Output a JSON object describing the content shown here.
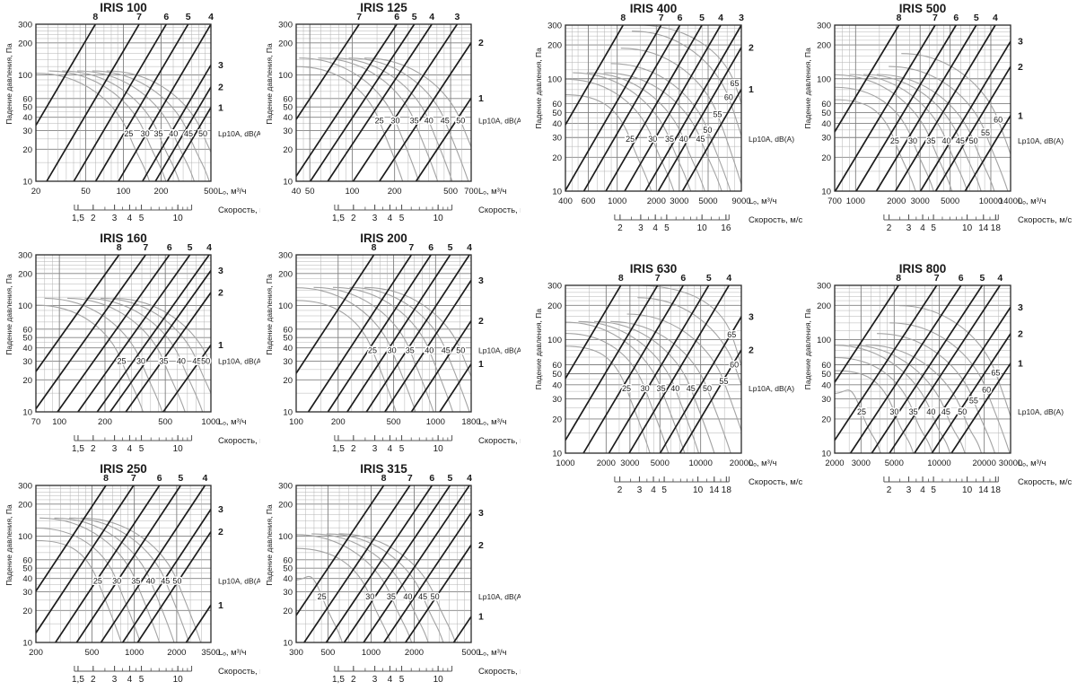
{
  "page": {
    "background": "#ffffff"
  },
  "axis_labels": {
    "pressure_axis": "Падение давления, Па",
    "flow_axis": "Lₒ, м³/ч",
    "velocity_axis": "Скорость, м/с",
    "noise_axis": "Lp10A, dB(A)"
  },
  "colors": {
    "damper_line": "#1c1c1c",
    "noise_line": "#a3a3a3",
    "noise_text": "#9a9a9a",
    "grid_minor": "#b3b3b3",
    "grid_major": "#808080",
    "border": "#2a2a2a",
    "text": "#1a1a1a"
  },
  "pressure_ticks": [
    300,
    200,
    100,
    60,
    50,
    40,
    30,
    20,
    10
  ],
  "pressure_range": [
    10,
    300
  ],
  "velocity_scales": {
    "small": {
      "labels": [
        "1,5",
        "2",
        "3",
        "4",
        "5",
        "10"
      ],
      "values": [
        1.5,
        2,
        3,
        4,
        5,
        10
      ],
      "v1": 1.4,
      "v2": 13,
      "f1": 0.22,
      "f2": 0.89,
      "minors": [
        1.5,
        2,
        2.5,
        3,
        3.5,
        4,
        4.5,
        5,
        6,
        7,
        8,
        9,
        10,
        11,
        12
      ]
    },
    "mid": {
      "labels": [
        "2",
        "3",
        "4",
        "5",
        "10",
        "16"
      ],
      "values": [
        2,
        3,
        4,
        5,
        10,
        16
      ],
      "v1": 1.8,
      "v2": 17,
      "f1": 0.28,
      "f2": 0.93,
      "minors": [
        2,
        2.5,
        3,
        3.5,
        4,
        4.5,
        5,
        6,
        7,
        8,
        9,
        10,
        12,
        14,
        16
      ]
    },
    "large": {
      "labels": [
        "2",
        "3",
        "4",
        "5",
        "10",
        "14",
        "18"
      ],
      "values": [
        2,
        3,
        4,
        5,
        10,
        14,
        18
      ],
      "v1": 1.8,
      "v2": 19,
      "f1": 0.28,
      "f2": 0.93,
      "minors": [
        2,
        2.5,
        3,
        3.5,
        4,
        4.5,
        5,
        6,
        7,
        8,
        9,
        10,
        12,
        14,
        16,
        18
      ]
    }
  },
  "chart_data": [
    {
      "type": "line",
      "title": "IRIS 100",
      "x_min": 20,
      "x_max": 500,
      "x_ticks": [
        20,
        50,
        100,
        200,
        500
      ],
      "damper_top": [
        [
          "8",
          0.34
        ],
        [
          "7",
          0.59
        ],
        [
          "6",
          0.745
        ],
        [
          "5",
          0.87
        ],
        [
          "4",
          1.0
        ]
      ],
      "damper_right": [
        [
          "3",
          0.26
        ],
        [
          "2",
          0.4
        ],
        [
          "1",
          0.53
        ]
      ],
      "noise_row_pa": 28,
      "noise_labels": [
        [
          "25",
          0.53
        ],
        [
          "30",
          0.624
        ],
        [
          "35",
          0.7
        ],
        [
          "40",
          0.786
        ],
        [
          "45",
          0.872
        ],
        [
          "50",
          0.954
        ]
      ],
      "velocity_scale": "small"
    },
    {
      "type": "line",
      "title": "IRIS 125",
      "x_min": 40,
      "x_max": 700,
      "x_ticks": [
        40,
        50,
        100,
        200,
        500,
        700
      ],
      "damper_top": [
        [
          "7",
          0.36
        ],
        [
          "6",
          0.575
        ],
        [
          "5",
          0.675
        ],
        [
          "4",
          0.775
        ],
        [
          "3",
          0.92
        ]
      ],
      "damper_right": [
        [
          "2",
          0.118
        ],
        [
          "1",
          0.47
        ]
      ],
      "noise_row_pa": 37,
      "noise_labels": [
        [
          "25",
          0.475
        ],
        [
          "30",
          0.567
        ],
        [
          "35",
          0.675
        ],
        [
          "40",
          0.758
        ],
        [
          "45",
          0.85
        ],
        [
          "50",
          0.94
        ]
      ],
      "velocity_scale": "small"
    },
    {
      "type": "line",
      "title": "IRIS 400",
      "x_min": 400,
      "x_max": 9000,
      "x_ticks": [
        400,
        600,
        1000,
        2000,
        3000,
        5000,
        9000
      ],
      "damper_top": [
        [
          "8",
          0.328
        ],
        [
          "7",
          0.544
        ],
        [
          "6",
          0.651
        ],
        [
          "5",
          0.776
        ],
        [
          "4",
          0.883
        ],
        [
          "3",
          1.0
        ]
      ],
      "damper_right": [
        [
          "2",
          0.135
        ],
        [
          "1",
          0.387
        ]
      ],
      "noise_row_pa": 29,
      "noise_labels": [
        [
          "25",
          0.368
        ],
        [
          "30",
          0.496
        ],
        [
          "35",
          0.592
        ],
        [
          "40",
          0.672
        ],
        [
          "45",
          0.768
        ],
        [
          "50",
          0.808,
          35
        ],
        [
          "55",
          0.865,
          48
        ],
        [
          "60",
          0.928,
          68
        ],
        [
          "65",
          0.962,
          91
        ]
      ],
      "velocity_scale": "mid"
    },
    {
      "type": "line",
      "title": "IRIS 500",
      "x_min": 700,
      "x_max": 14000,
      "x_ticks": [
        700,
        1000,
        2000,
        3000,
        5000,
        10000,
        14000
      ],
      "damper_top": [
        [
          "8",
          0.365
        ],
        [
          "7",
          0.571
        ],
        [
          "6",
          0.69
        ],
        [
          "5",
          0.805
        ],
        [
          "4",
          0.913
        ]
      ],
      "damper_right": [
        [
          "3",
          0.098
        ],
        [
          "2",
          0.25
        ],
        [
          "1",
          0.545
        ]
      ],
      "noise_row_pa": 28,
      "noise_labels": [
        [
          "25",
          0.341
        ],
        [
          "30",
          0.444
        ],
        [
          "35",
          0.548
        ],
        [
          "40",
          0.635
        ],
        [
          "45",
          0.714
        ],
        [
          "50",
          0.789
        ],
        [
          "55",
          0.857,
          33
        ],
        [
          "60",
          0.929,
          43
        ]
      ],
      "velocity_scale": "large"
    },
    {
      "type": "line",
      "title": "IRIS 160",
      "x_min": 70,
      "x_max": 1000,
      "x_ticks": [
        70,
        100,
        200,
        500,
        1000
      ],
      "damper_top": [
        [
          "8",
          0.475
        ],
        [
          "7",
          0.627
        ],
        [
          "6",
          0.763
        ],
        [
          "5",
          0.88
        ],
        [
          "4",
          0.99
        ]
      ],
      "damper_right": [
        [
          "3",
          0.1
        ],
        [
          "2",
          0.24
        ],
        [
          "1",
          0.574
        ]
      ],
      "noise_row_pa": 30,
      "noise_labels": [
        [
          "25",
          0.49
        ],
        [
          "30",
          0.6
        ],
        [
          "35",
          0.73
        ],
        [
          "40",
          0.83
        ],
        [
          "45",
          0.92
        ],
        [
          "50",
          0.99
        ]
      ],
      "velocity_scale": "small"
    },
    {
      "type": "line",
      "title": "IRIS 200",
      "x_min": 100,
      "x_max": 1800,
      "x_ticks": [
        100,
        200,
        500,
        1000,
        1800
      ],
      "damper_top": [
        [
          "8",
          0.444
        ],
        [
          "7",
          0.658
        ],
        [
          "6",
          0.77
        ],
        [
          "5",
          0.88
        ],
        [
          "4",
          0.99
        ]
      ],
      "damper_right": [
        [
          "3",
          0.162
        ],
        [
          "2",
          0.42
        ],
        [
          "1",
          0.695
        ]
      ],
      "noise_row_pa": 38,
      "noise_labels": [
        [
          "25",
          0.436
        ],
        [
          "30",
          0.547
        ],
        [
          "35",
          0.65
        ],
        [
          "40",
          0.76
        ],
        [
          "45",
          0.855
        ],
        [
          "50",
          0.94
        ]
      ],
      "velocity_scale": "small"
    },
    {
      "type": "line",
      "title": "IRIS 630",
      "x_min": 1000,
      "x_max": 20000,
      "x_ticks": [
        1000,
        2000,
        3000,
        5000,
        10000,
        20000
      ],
      "damper_top": [
        [
          "8",
          0.315
        ],
        [
          "7",
          0.524
        ],
        [
          "6",
          0.67
        ],
        [
          "5",
          0.815
        ],
        [
          "4",
          0.93
        ]
      ],
      "damper_right": [
        [
          "3",
          0.187
        ],
        [
          "2",
          0.385
        ]
      ],
      "noise_row_pa": 37,
      "noise_labels": [
        [
          "25",
          0.347
        ],
        [
          "30",
          0.452
        ],
        [
          "35",
          0.544
        ],
        [
          "40",
          0.624
        ],
        [
          "45",
          0.713
        ],
        [
          "50",
          0.806
        ],
        [
          "55",
          0.9,
          43
        ],
        [
          "60",
          0.96,
          60
        ],
        [
          "65",
          0.945,
          110
        ]
      ],
      "velocity_scale": "large"
    },
    {
      "type": "line",
      "title": "IRIS 800",
      "x_min": 2000,
      "x_max": 30000,
      "x_ticks": [
        2000,
        3000,
        5000,
        10000,
        20000,
        30000
      ],
      "damper_top": [
        [
          "8",
          0.363
        ],
        [
          "7",
          0.58
        ],
        [
          "6",
          0.718
        ],
        [
          "5",
          0.839
        ],
        [
          "4",
          0.94
        ]
      ],
      "damper_right": [
        [
          "3",
          0.13
        ],
        [
          "2",
          0.288
        ],
        [
          "1",
          0.465
        ]
      ],
      "noise_row_pa": 23,
      "noise_labels": [
        [
          "25",
          0.153
        ],
        [
          "30",
          0.339
        ],
        [
          "35",
          0.447
        ],
        [
          "40",
          0.548
        ],
        [
          "45",
          0.632
        ],
        [
          "50",
          0.726
        ],
        [
          "55",
          0.79,
          29
        ],
        [
          "60",
          0.863,
          36
        ],
        [
          "65",
          0.915,
          51
        ]
      ],
      "velocity_scale": "large"
    },
    {
      "type": "line",
      "title": "IRIS 250",
      "x_min": 200,
      "x_max": 3500,
      "x_ticks": [
        200,
        500,
        1000,
        2000,
        3500
      ],
      "damper_top": [
        [
          "8",
          0.4
        ],
        [
          "7",
          0.558
        ],
        [
          "6",
          0.706
        ],
        [
          "5",
          0.827
        ],
        [
          "4",
          0.966
        ]
      ],
      "damper_right": [
        [
          "3",
          0.152
        ],
        [
          "2",
          0.295
        ],
        [
          "1",
          0.762
        ]
      ],
      "noise_row_pa": 38,
      "noise_labels": [
        [
          "25",
          0.353
        ],
        [
          "30",
          0.462
        ],
        [
          "35",
          0.571
        ],
        [
          "40",
          0.655
        ],
        [
          "45",
          0.74
        ],
        [
          "50",
          0.807
        ]
      ],
      "velocity_scale": "small"
    },
    {
      "type": "line",
      "title": "IRIS 315",
      "x_min": 300,
      "x_max": 5000,
      "x_ticks": [
        300,
        500,
        1000,
        2000,
        5000
      ],
      "damper_top": [
        [
          "8",
          0.5
        ],
        [
          "7",
          0.65
        ],
        [
          "6",
          0.776
        ],
        [
          "5",
          0.879
        ],
        [
          "4",
          0.99
        ]
      ],
      "damper_right": [
        [
          "3",
          0.175
        ],
        [
          "2",
          0.379
        ],
        [
          "1",
          0.835
        ]
      ],
      "noise_row_pa": 27,
      "noise_labels": [
        [
          "25",
          0.147
        ],
        [
          "30",
          0.422
        ],
        [
          "35",
          0.543
        ],
        [
          "40",
          0.638
        ],
        [
          "45",
          0.724
        ],
        [
          "50",
          0.793
        ]
      ],
      "velocity_scale": "small"
    }
  ]
}
